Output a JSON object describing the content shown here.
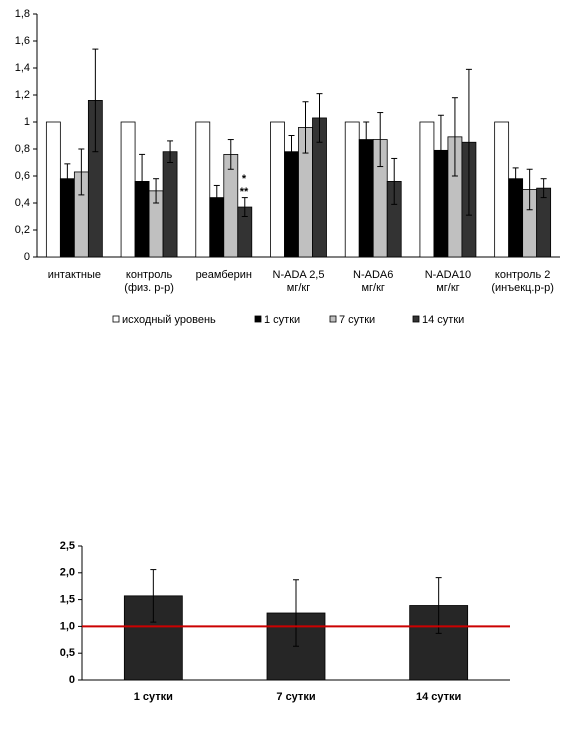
{
  "chart_data": [
    {
      "type": "bar",
      "categories": [
        [
          "интактные"
        ],
        [
          "контроль",
          "(физ. р-р)"
        ],
        [
          "реамберин"
        ],
        [
          "N-ADA 2,5",
          "мг/кг"
        ],
        [
          "N-ADA6",
          "мг/кг"
        ],
        [
          "N-ADA10",
          "мг/кг"
        ],
        [
          "контроль 2",
          "(инъекц.р-р)"
        ]
      ],
      "series": [
        {
          "name": "исходный уровень",
          "color": "#ffffff",
          "values": [
            1,
            1,
            1,
            1,
            1,
            1,
            1
          ]
        },
        {
          "name": "1 сутки",
          "color": "#000000",
          "values": [
            0.58,
            0.56,
            0.44,
            0.78,
            0.87,
            0.79,
            0.58
          ],
          "errors": [
            0.11,
            0.2,
            0.09,
            0.12,
            0.13,
            0.26,
            0.08
          ]
        },
        {
          "name": "7 сутки",
          "color": "#c0c0c0",
          "values": [
            0.63,
            0.49,
            0.76,
            0.96,
            0.87,
            0.89,
            0.5
          ],
          "errors": [
            0.17,
            0.09,
            0.11,
            0.19,
            0.2,
            0.29,
            0.15
          ]
        },
        {
          "name": "14 сутки",
          "color": "#333333",
          "values": [
            1.16,
            0.78,
            0.37,
            1.03,
            0.56,
            0.85,
            0.51
          ],
          "errors": [
            0.38,
            0.08,
            0.07,
            0.18,
            0.17,
            0.54,
            0.07
          ]
        }
      ],
      "annotations": [
        "*",
        "**"
      ],
      "ylim": [
        0,
        1.8
      ],
      "yticks": [
        0,
        {
          "value": 0.2,
          "label": "0,2"
        },
        {
          "value": 0.4,
          "label": "0,4"
        },
        {
          "value": 0.6,
          "label": "0,6"
        },
        {
          "value": 0.8,
          "label": "0,8"
        },
        1,
        {
          "value": 1.2,
          "label": "1,2"
        },
        {
          "value": 1.4,
          "label": "1,4"
        },
        {
          "value": 1.6,
          "label": "1,6"
        },
        {
          "value": 1.8,
          "label": "1,8"
        }
      ],
      "legend": "bottom"
    },
    {
      "type": "bar",
      "categories": [
        [
          "1 сутки"
        ],
        [
          "7 сутки"
        ],
        [
          "14 сутки"
        ]
      ],
      "series": [
        {
          "color": "#262626",
          "values": [
            1.57,
            1.25,
            1.39
          ],
          "errors": [
            0.49,
            0.62,
            0.52
          ]
        }
      ],
      "reference_line": {
        "value": 1,
        "color": "#cc0000"
      },
      "ylim": [
        0,
        2.5
      ],
      "yticks": [
        0,
        {
          "value": 0.5,
          "label": "0,5"
        },
        {
          "value": 1,
          "label": "1,0"
        },
        {
          "value": 1.5,
          "label": "1,5"
        },
        {
          "value": 2,
          "label": "2,0"
        },
        {
          "value": 2.5,
          "label": "2,5"
        }
      ]
    }
  ]
}
